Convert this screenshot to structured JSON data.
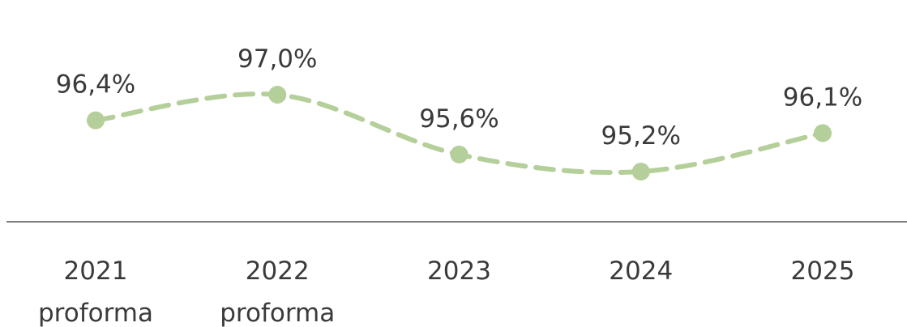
{
  "chart_data": {
    "type": "line",
    "categories": [
      "2021 proforma",
      "2022 proforma",
      "2023",
      "2024",
      "2025"
    ],
    "values": [
      96.4,
      97.0,
      95.6,
      95.2,
      96.1
    ],
    "value_labels": [
      "96,4%",
      "97,0%",
      "95,6%",
      "95,2%",
      "96,1%"
    ],
    "color": "#b4cf99"
  }
}
